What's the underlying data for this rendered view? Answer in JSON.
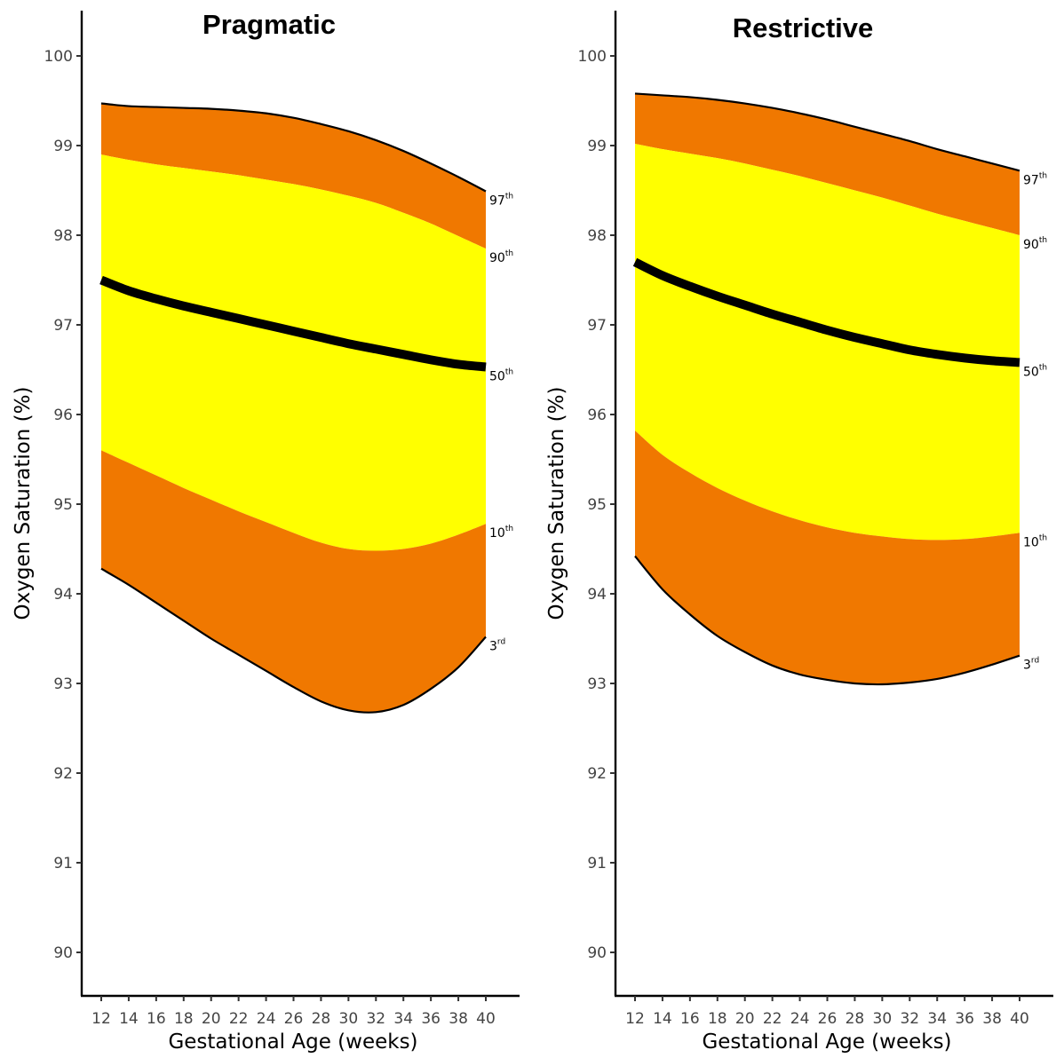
{
  "chart_data": [
    {
      "type": "area",
      "title": "Pragmatic",
      "xlabel": "Gestational Age (weeks)",
      "ylabel": "Oxygen Saturation (%)",
      "x": [
        12,
        14,
        16,
        18,
        20,
        22,
        24,
        26,
        28,
        30,
        32,
        34,
        36,
        38,
        40
      ],
      "xticks": [
        "12",
        "14",
        "16",
        "18",
        "20",
        "22",
        "24",
        "26",
        "28",
        "30",
        "32",
        "34",
        "36",
        "38",
        "40"
      ],
      "yticks": [
        "90",
        "91",
        "92",
        "93",
        "94",
        "95",
        "96",
        "97",
        "98",
        "99",
        "100"
      ],
      "xlim": [
        10.8,
        43
      ],
      "ylim": [
        89.5,
        100.5
      ],
      "band_colors": {
        "outer": "#f07800",
        "inner": "#ffff00",
        "median": "#000000",
        "boundary": "#000000"
      },
      "series": [
        {
          "label_num": "97",
          "label_sup": "th",
          "values": [
            99.47,
            99.44,
            99.43,
            99.42,
            99.41,
            99.39,
            99.36,
            99.31,
            99.24,
            99.16,
            99.06,
            98.94,
            98.8,
            98.65,
            98.49
          ]
        },
        {
          "label_num": "90",
          "label_sup": "th",
          "values": [
            98.9,
            98.84,
            98.79,
            98.75,
            98.71,
            98.67,
            98.62,
            98.57,
            98.51,
            98.44,
            98.36,
            98.25,
            98.13,
            97.99,
            97.85
          ]
        },
        {
          "label_num": "50",
          "label_sup": "th",
          "values": [
            97.5,
            97.38,
            97.29,
            97.21,
            97.14,
            97.07,
            97.0,
            96.93,
            96.86,
            96.79,
            96.73,
            96.67,
            96.61,
            96.56,
            96.53
          ]
        },
        {
          "label_num": "10",
          "label_sup": "th",
          "values": [
            95.6,
            95.46,
            95.32,
            95.18,
            95.05,
            94.92,
            94.8,
            94.68,
            94.57,
            94.5,
            94.48,
            94.5,
            94.56,
            94.66,
            94.78
          ]
        },
        {
          "label_num": "3",
          "label_sup": "rd",
          "values": [
            94.28,
            94.1,
            93.9,
            93.7,
            93.5,
            93.32,
            93.14,
            92.96,
            92.8,
            92.7,
            92.68,
            92.76,
            92.94,
            93.18,
            93.52
          ]
        }
      ]
    },
    {
      "type": "area",
      "title": "Restrictive",
      "xlabel": "Gestational Age (weeks)",
      "ylabel": "Oxygen Saturation (%)",
      "x": [
        12,
        14,
        16,
        18,
        20,
        22,
        24,
        26,
        28,
        30,
        32,
        34,
        36,
        38,
        40
      ],
      "xticks": [
        "12",
        "14",
        "16",
        "18",
        "20",
        "22",
        "24",
        "26",
        "28",
        "30",
        "32",
        "34",
        "36",
        "38",
        "40"
      ],
      "yticks": [
        "90",
        "91",
        "92",
        "93",
        "94",
        "95",
        "96",
        "97",
        "98",
        "99",
        "100"
      ],
      "xlim": [
        10.8,
        43
      ],
      "ylim": [
        89.5,
        100.5
      ],
      "band_colors": {
        "outer": "#f07800",
        "inner": "#ffff00",
        "median": "#000000",
        "boundary": "#000000"
      },
      "series": [
        {
          "label_num": "97",
          "label_sup": "th",
          "values": [
            99.58,
            99.56,
            99.54,
            99.51,
            99.47,
            99.42,
            99.36,
            99.29,
            99.21,
            99.13,
            99.05,
            98.96,
            98.88,
            98.8,
            98.72
          ]
        },
        {
          "label_num": "90",
          "label_sup": "th",
          "values": [
            99.02,
            98.96,
            98.91,
            98.86,
            98.8,
            98.73,
            98.66,
            98.58,
            98.5,
            98.42,
            98.33,
            98.24,
            98.16,
            98.08,
            98.0
          ]
        },
        {
          "label_num": "50",
          "label_sup": "th",
          "values": [
            97.7,
            97.55,
            97.43,
            97.32,
            97.22,
            97.12,
            97.03,
            96.94,
            96.86,
            96.79,
            96.72,
            96.67,
            96.63,
            96.6,
            96.58
          ]
        },
        {
          "label_num": "10",
          "label_sup": "th",
          "values": [
            95.82,
            95.55,
            95.35,
            95.18,
            95.04,
            94.92,
            94.82,
            94.74,
            94.68,
            94.64,
            94.61,
            94.6,
            94.61,
            94.64,
            94.68
          ]
        },
        {
          "label_num": "3",
          "label_sup": "rd",
          "values": [
            94.42,
            94.05,
            93.77,
            93.53,
            93.35,
            93.2,
            93.1,
            93.04,
            93.0,
            92.99,
            93.01,
            93.05,
            93.12,
            93.21,
            93.31
          ]
        }
      ]
    }
  ]
}
